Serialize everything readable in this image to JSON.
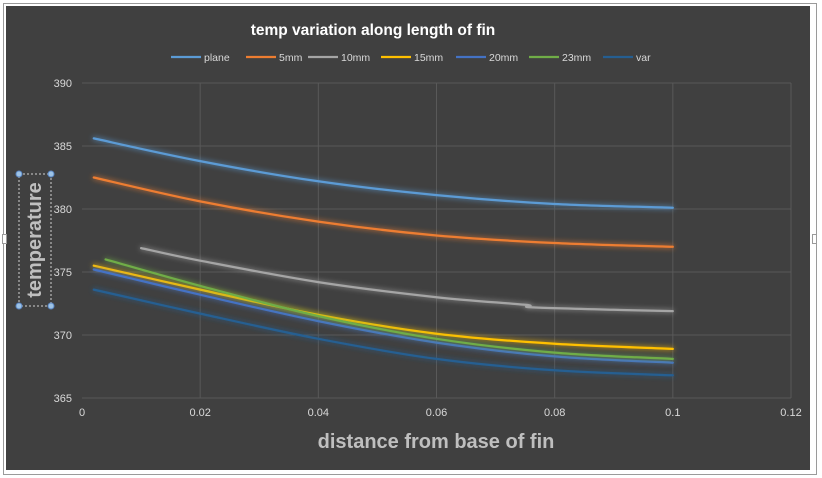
{
  "chart_data": {
    "type": "line",
    "title": "temp variation along length of fin",
    "xlabel": "distance from base of fin",
    "ylabel": "temperature",
    "xlim": [
      0,
      0.12
    ],
    "ylim": [
      365,
      390
    ],
    "xticks": [
      0,
      0.02,
      0.04,
      0.06,
      0.08,
      0.1,
      0.12
    ],
    "yticks": [
      365,
      370,
      375,
      380,
      385,
      390
    ],
    "xtick_labels": [
      "0",
      "0.02",
      "0.04",
      "0.06",
      "0.08",
      "0.1",
      "0.12"
    ],
    "ytick_labels": [
      "365",
      "370",
      "375",
      "380",
      "385",
      "390"
    ],
    "grid": true,
    "legend_position": "top",
    "series": [
      {
        "name": "plane",
        "color": "#5b9bd5",
        "x": [
          0.002,
          0.02,
          0.04,
          0.06,
          0.08,
          0.1
        ],
        "y": [
          385.6,
          383.8,
          382.2,
          381.1,
          380.4,
          380.1
        ]
      },
      {
        "name": "5mm",
        "color": "#ed7d31",
        "x": [
          0.002,
          0.02,
          0.04,
          0.06,
          0.08,
          0.1
        ],
        "y": [
          382.5,
          380.6,
          379.0,
          377.9,
          377.3,
          377.0
        ]
      },
      {
        "name": "10mm",
        "color": "#a5a5a5",
        "x": [
          0.01,
          0.02,
          0.04,
          0.06,
          0.075,
          0.076,
          0.09,
          0.1
        ],
        "y": [
          376.9,
          375.9,
          374.2,
          373.0,
          372.4,
          372.2,
          372.0,
          371.9
        ]
      },
      {
        "name": "15mm",
        "color": "#ffc000",
        "x": [
          0.002,
          0.02,
          0.04,
          0.06,
          0.08,
          0.1
        ],
        "y": [
          375.5,
          373.6,
          371.6,
          370.1,
          369.3,
          368.9
        ]
      },
      {
        "name": "20mm",
        "color": "#4472c4",
        "x": [
          0.002,
          0.02,
          0.04,
          0.06,
          0.08,
          0.1
        ],
        "y": [
          375.2,
          373.2,
          371.1,
          369.4,
          368.3,
          367.8
        ]
      },
      {
        "name": "23mm",
        "color": "#70ad47",
        "x": [
          0.004,
          0.02,
          0.04,
          0.06,
          0.08,
          0.1
        ],
        "y": [
          376.0,
          373.9,
          371.5,
          369.7,
          368.6,
          368.1
        ]
      },
      {
        "name": "var",
        "color": "#255e91",
        "x": [
          0.002,
          0.02,
          0.04,
          0.06,
          0.08,
          0.1
        ],
        "y": [
          373.6,
          371.7,
          369.7,
          368.1,
          367.2,
          366.8
        ]
      }
    ]
  }
}
